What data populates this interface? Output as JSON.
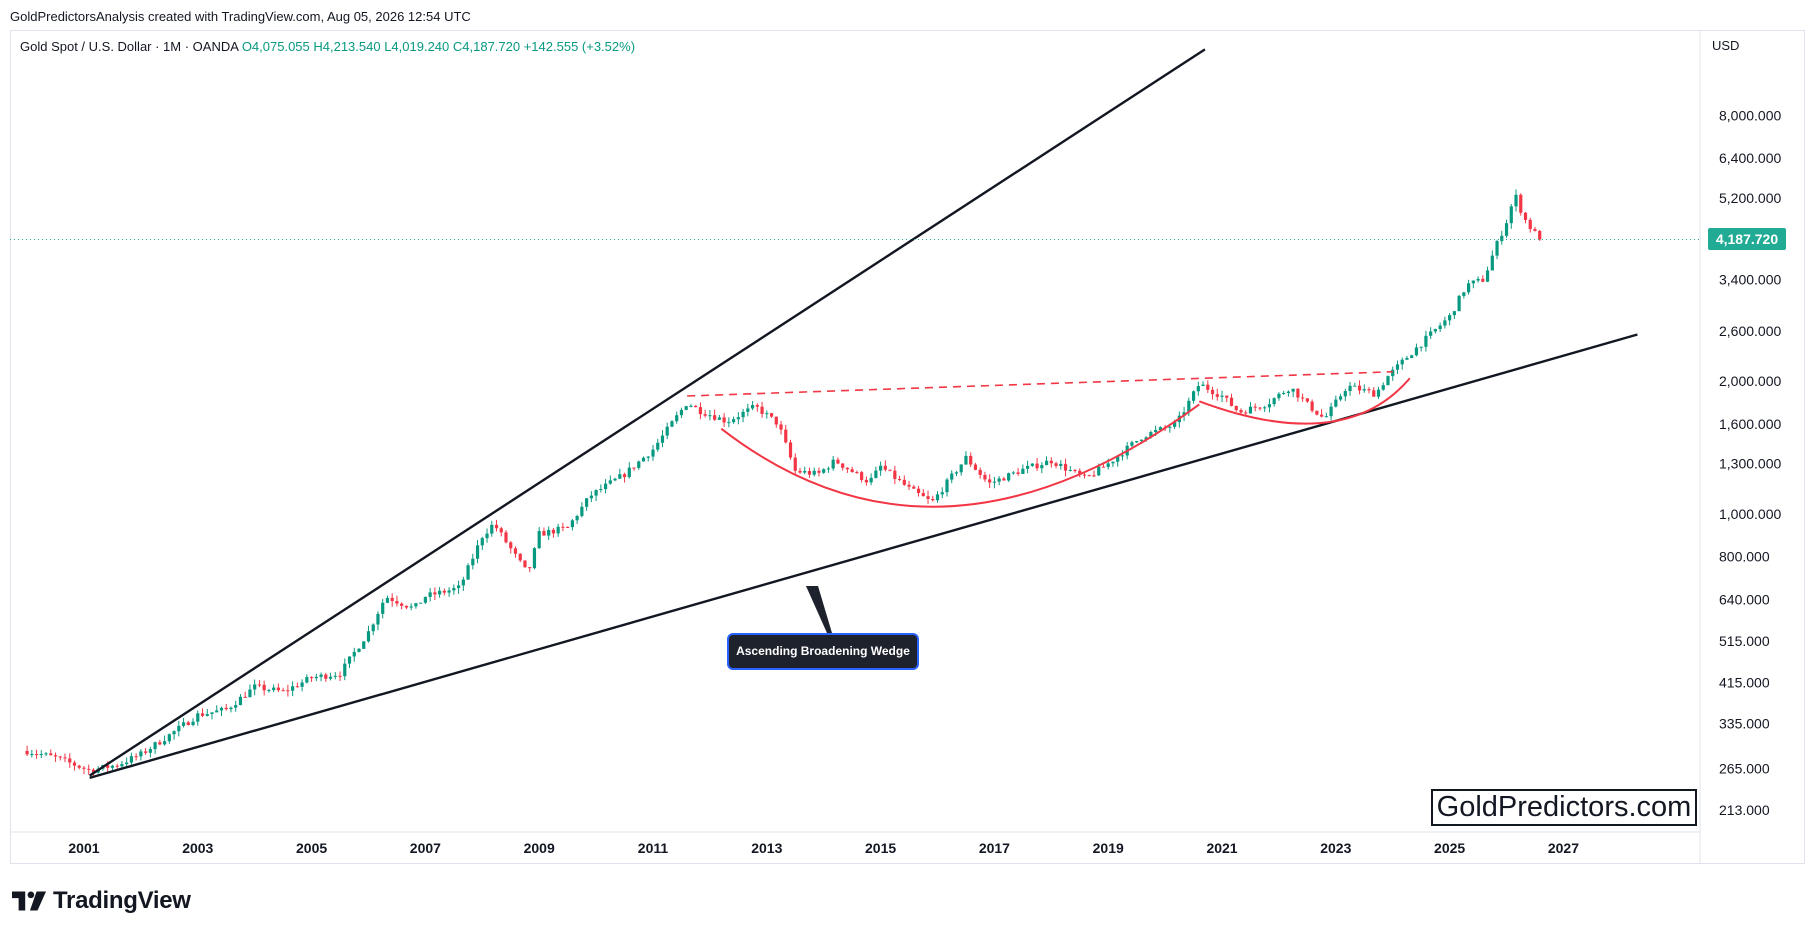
{
  "header": {
    "attribution": "GoldPredictorsAnalysis created with TradingView.com, Aug 05, 2026 12:54 UTC"
  },
  "legend": {
    "symbol": "Gold Spot / U.S. Dollar · 1M · OANDA",
    "ohlc": "O4,075.055  H4,213.540  L4,019.240  C4,187.720  +142.555 (+3.52%)"
  },
  "price_scale": {
    "currency": "USD",
    "last_price": "4,187.720"
  },
  "watermark": "GoldPredictors.com",
  "brand": "TradingView",
  "colors": {
    "up": "#089981",
    "down": "#f23645",
    "last_price": "#22ab94",
    "trendline": "#131722",
    "pattern": "#f23645"
  },
  "chart_data": {
    "type": "candlestick",
    "symbol": "Gold Spot / U.S. Dollar",
    "interval": "1M",
    "source": "OANDA",
    "y_scale": "log",
    "ylim": [
      190,
      12500
    ],
    "xlim": [
      1999.7,
      2029.4
    ],
    "y_ticks": [
      "8,000.000",
      "6,400.000",
      "5,200.000",
      "3,400.000",
      "2,600.000",
      "2,000.000",
      "1,600.000",
      "1,300.000",
      "1,000.000",
      "800.000",
      "640.000",
      "515.000",
      "415.000",
      "335.000",
      "265.000",
      "213.000"
    ],
    "y_tick_values": [
      8000,
      6400,
      5200,
      3400,
      2600,
      2000,
      1600,
      1300,
      1000,
      800,
      640,
      515,
      415,
      335,
      265,
      213
    ],
    "x_ticks": [
      "2001",
      "2003",
      "2005",
      "2007",
      "2009",
      "2011",
      "2013",
      "2015",
      "2017",
      "2019",
      "2021",
      "2023",
      "2025",
      "2027"
    ],
    "last_close": 4187.72,
    "price_path": [
      [
        2000.0,
        290
      ],
      [
        2000.5,
        280
      ],
      [
        2001.1,
        262
      ],
      [
        2001.6,
        270
      ],
      [
        2002.0,
        285
      ],
      [
        2002.5,
        315
      ],
      [
        2003.0,
        350
      ],
      [
        2003.5,
        360
      ],
      [
        2004.0,
        405
      ],
      [
        2004.5,
        395
      ],
      [
        2005.0,
        425
      ],
      [
        2005.5,
        435
      ],
      [
        2006.0,
        540
      ],
      [
        2006.3,
        650
      ],
      [
        2006.8,
        610
      ],
      [
        2007.0,
        650
      ],
      [
        2007.6,
        680
      ],
      [
        2008.0,
        890
      ],
      [
        2008.2,
        950
      ],
      [
        2008.8,
        730
      ],
      [
        2009.0,
        900
      ],
      [
        2009.5,
        930
      ],
      [
        2009.9,
        1100
      ],
      [
        2010.5,
        1230
      ],
      [
        2011.0,
        1400
      ],
      [
        2011.6,
        1790
      ],
      [
        2011.8,
        1720
      ],
      [
        2012.3,
        1620
      ],
      [
        2012.8,
        1750
      ],
      [
        2013.2,
        1600
      ],
      [
        2013.5,
        1250
      ],
      [
        2013.9,
        1230
      ],
      [
        2014.2,
        1320
      ],
      [
        2014.8,
        1180
      ],
      [
        2015.0,
        1280
      ],
      [
        2015.5,
        1140
      ],
      [
        2015.9,
        1060
      ],
      [
        2016.5,
        1340
      ],
      [
        2016.9,
        1170
      ],
      [
        2017.5,
        1260
      ],
      [
        2018.0,
        1320
      ],
      [
        2018.6,
        1200
      ],
      [
        2019.0,
        1300
      ],
      [
        2019.6,
        1500
      ],
      [
        2020.2,
        1600
      ],
      [
        2020.6,
        1970
      ],
      [
        2021.0,
        1850
      ],
      [
        2021.3,
        1700
      ],
      [
        2021.8,
        1780
      ],
      [
        2022.2,
        1940
      ],
      [
        2022.5,
        1770
      ],
      [
        2022.8,
        1640
      ],
      [
        2023.2,
        1950
      ],
      [
        2023.7,
        1870
      ],
      [
        2023.9,
        2040
      ],
      [
        2024.3,
        2300
      ],
      [
        2024.8,
        2650
      ],
      [
        2025.0,
        2800
      ],
      [
        2025.3,
        3300
      ],
      [
        2025.6,
        3400
      ],
      [
        2025.8,
        4000
      ],
      [
        2026.0,
        4600
      ],
      [
        2026.15,
        5300
      ],
      [
        2026.3,
        4700
      ],
      [
        2026.45,
        4400
      ],
      [
        2026.6,
        4187.72
      ]
    ],
    "annotations": [
      {
        "type": "trendline",
        "style": "solid",
        "color": "#131722",
        "from": [
          2001.1,
          252
        ],
        "to": [
          2028.3,
          2550
        ]
      },
      {
        "type": "trendline",
        "style": "solid",
        "color": "#131722",
        "from": [
          2001.1,
          255
        ],
        "to": [
          2020.7,
          11300
        ]
      },
      {
        "type": "trendline",
        "style": "dashed",
        "color": "#f23645",
        "from": [
          2011.6,
          1850
        ],
        "to": [
          2024.0,
          2100
        ]
      },
      {
        "type": "arc",
        "style": "solid",
        "color": "#f23645",
        "from": [
          2012.2,
          1560
        ],
        "bottom": [
          2016.2,
          1040
        ],
        "to": [
          2020.6,
          1770
        ]
      },
      {
        "type": "arc",
        "style": "solid",
        "color": "#f23645",
        "from": [
          2020.6,
          1800
        ],
        "bottom": [
          2022.8,
          1610
        ],
        "to": [
          2024.3,
          2030
        ]
      },
      {
        "type": "label",
        "text": "Ascending Broadening Wedge",
        "point": [
          2012.5,
          715
        ]
      }
    ]
  }
}
